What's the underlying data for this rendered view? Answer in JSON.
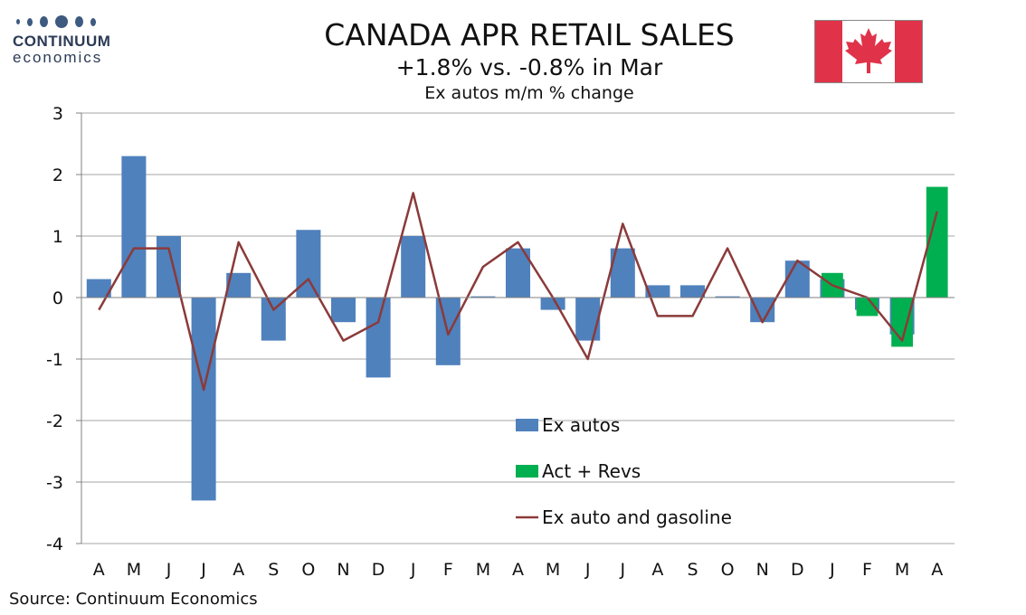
{
  "logo": {
    "name": "CONTINUUM",
    "sub": "economics"
  },
  "title": "CANADA APR RETAIL SALES",
  "subtitle": "+1.8% vs. -0.8% in Mar",
  "subtitle2": "Ex autos m/m % change",
  "source": "Source: Continuum Economics",
  "colors": {
    "exAutos": "#4f81bd",
    "actRevs": "#00b050",
    "line": "#8b3a3a",
    "flagRed": "#e0334a"
  },
  "chart_data": {
    "type": "bar",
    "categories": [
      "A",
      "M",
      "J",
      "J",
      "A",
      "S",
      "O",
      "N",
      "D",
      "J",
      "F",
      "M",
      "A",
      "M",
      "J",
      "J",
      "A",
      "S",
      "O",
      "N",
      "D",
      "J",
      "F",
      "M",
      "A"
    ],
    "ylim": [
      -4,
      3
    ],
    "yticks": [
      3,
      2,
      1,
      0,
      -1,
      -2,
      -3,
      -4
    ],
    "grid": true,
    "legend_position": "bottom-center",
    "series": [
      {
        "name": "Ex autos",
        "type": "bar",
        "values": [
          0.3,
          2.3,
          1.0,
          -3.3,
          0.4,
          -0.7,
          1.1,
          -0.4,
          -1.3,
          1.0,
          -1.1,
          0.02,
          0.8,
          -0.2,
          -0.7,
          0.8,
          0.2,
          0.2,
          0.02,
          -0.4,
          0.6,
          0.3,
          -0.2,
          -0.6,
          null
        ]
      },
      {
        "name": "Act + Revs",
        "type": "bar",
        "values": [
          null,
          null,
          null,
          null,
          null,
          null,
          null,
          null,
          null,
          null,
          null,
          null,
          null,
          null,
          null,
          null,
          null,
          null,
          null,
          null,
          null,
          0.4,
          -0.3,
          -0.8,
          1.8
        ]
      },
      {
        "name": "Ex auto and gasoline",
        "type": "line",
        "values": [
          -0.2,
          0.8,
          0.8,
          -1.5,
          0.9,
          -0.2,
          0.3,
          -0.7,
          -0.4,
          1.7,
          -0.6,
          0.5,
          0.9,
          0.0,
          -1.0,
          1.2,
          -0.3,
          -0.3,
          0.8,
          -0.4,
          0.6,
          0.2,
          0.0,
          -0.7,
          1.4
        ]
      }
    ]
  }
}
